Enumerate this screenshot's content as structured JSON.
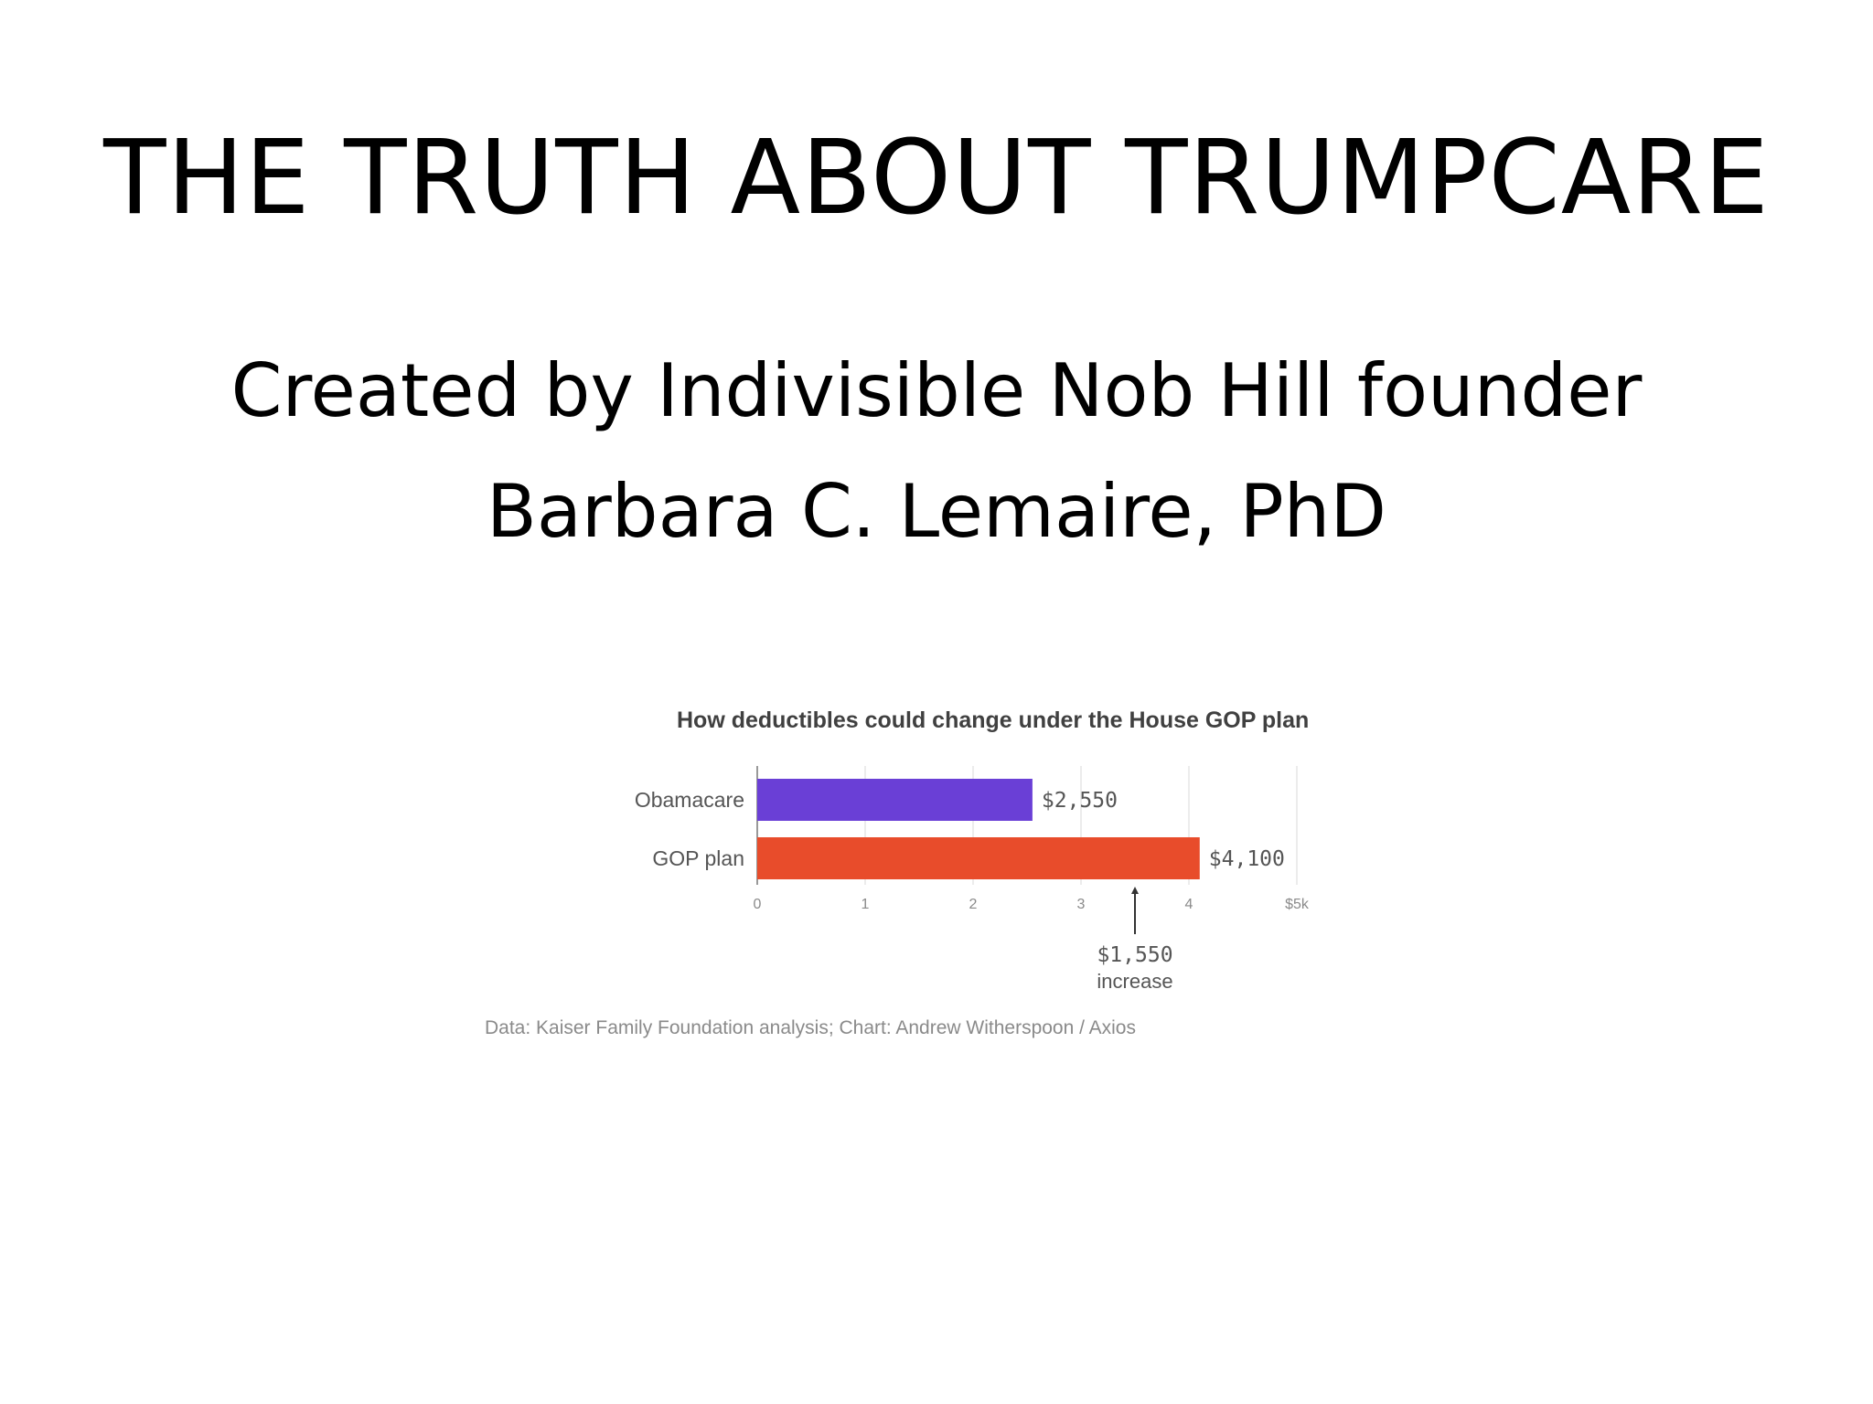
{
  "slide": {
    "title": "THE TRUTH ABOUT TRUMPCARE",
    "subtitle_line1": "Created by Indivisible Nob Hill founder",
    "subtitle_line2": "Barbara C. Lemaire, PhD"
  },
  "chart_data": {
    "type": "bar",
    "orientation": "horizontal",
    "title": "How deductibles could change under the House GOP plan",
    "categories": [
      "Obamacare",
      "GOP plan"
    ],
    "values": [
      2550,
      4100
    ],
    "value_labels": [
      "$2,550",
      "$4,100"
    ],
    "colors": [
      "#6a3fd6",
      "#e84c2b"
    ],
    "xlim": [
      0,
      5000
    ],
    "x_ticks": [
      0,
      1000,
      2000,
      3000,
      4000,
      5000
    ],
    "x_tick_labels": [
      "0",
      "1",
      "2",
      "3",
      "4",
      "$5k"
    ],
    "grid": true,
    "annotation": {
      "x": 3500,
      "line1": "$1,550",
      "line2": "increase"
    },
    "source": "Data: Kaiser Family Foundation analysis; Chart: Andrew Witherspoon / Axios"
  }
}
